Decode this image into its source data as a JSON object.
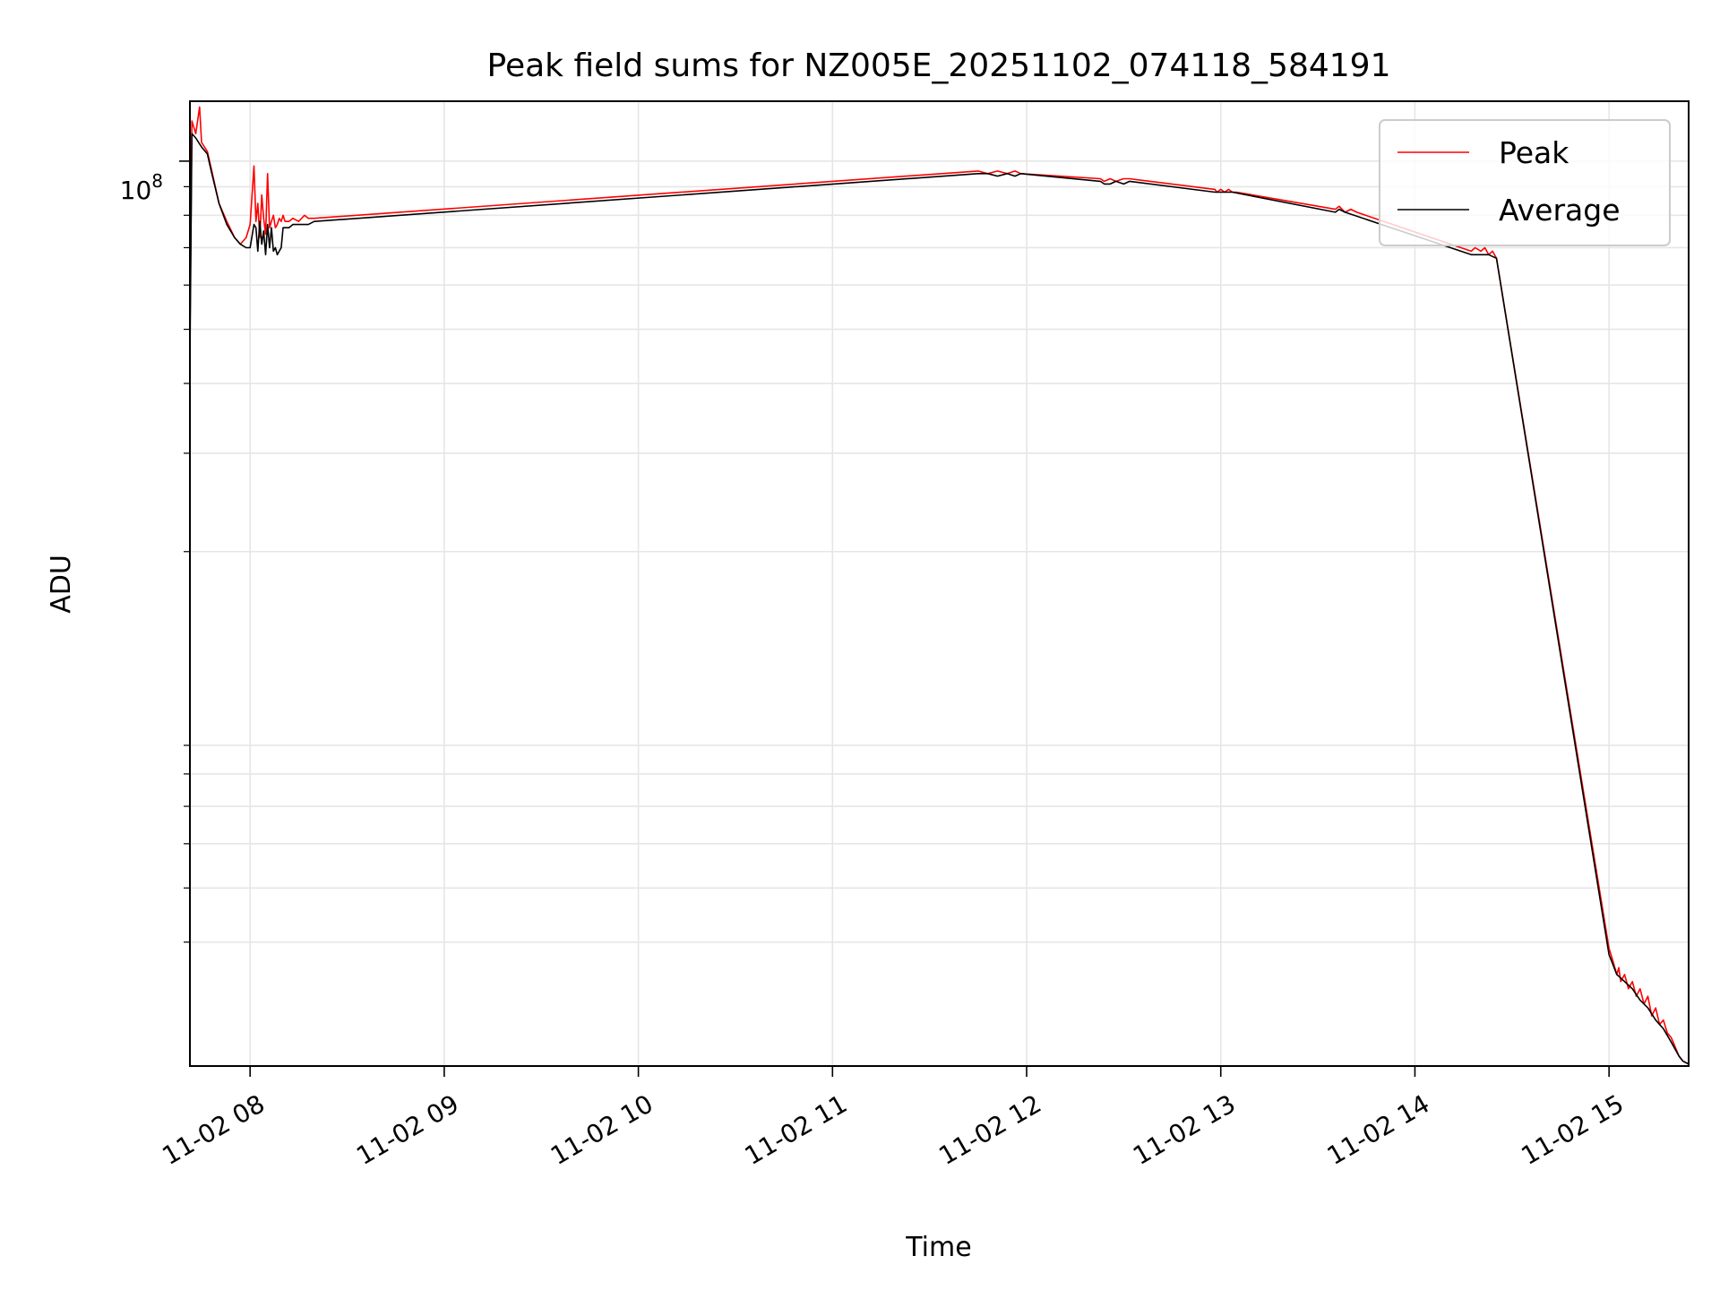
{
  "chart_data": {
    "type": "line",
    "title": "Peak field sums for NZ005E_20251102_074118_584191",
    "xlabel": "Time",
    "ylabel": "ADU",
    "yscale": "log",
    "grid": true,
    "legend_position": "top-right",
    "x_unit": "hours since 11-02 00:00",
    "xlim": [
      7.69,
      15.41
    ],
    "ylim": [
      2400000,
      128000000
    ],
    "x_ticks": [
      8,
      9,
      10,
      11,
      12,
      13,
      14,
      15
    ],
    "x_tick_labels": [
      "11-02 08",
      "11-02 09",
      "11-02 10",
      "11-02 11",
      "11-02 12",
      "11-02 13",
      "11-02 14",
      "11-02 15"
    ],
    "y_tick_label": {
      "base": "10",
      "exponent": "8",
      "value": 100000000
    },
    "y_minor_ticks": [
      4000000,
      5000000,
      6000000,
      7000000,
      8000000,
      9000000,
      20000000,
      30000000,
      40000000,
      50000000,
      60000000,
      70000000,
      80000000,
      90000000
    ],
    "series": [
      {
        "name": "Peak",
        "color": "#ff0000",
        "x": [
          7.69,
          7.7,
          7.72,
          7.74,
          7.75,
          7.78,
          7.8,
          7.84,
          7.88,
          7.92,
          7.95,
          7.98,
          8.0,
          8.02,
          8.03,
          8.04,
          8.05,
          8.06,
          8.07,
          8.08,
          8.09,
          8.1,
          8.11,
          8.12,
          8.13,
          8.14,
          8.15,
          8.16,
          8.17,
          8.18,
          8.2,
          8.22,
          8.25,
          8.28,
          8.3,
          8.33,
          11.75,
          11.8,
          11.85,
          11.9,
          11.94,
          11.97,
          12.38,
          12.4,
          12.43,
          12.46,
          12.5,
          12.53,
          12.97,
          12.98,
          13.0,
          13.02,
          13.04,
          13.06,
          13.08,
          13.59,
          13.61,
          13.64,
          13.67,
          13.7,
          14.29,
          14.31,
          14.34,
          14.36,
          14.38,
          14.4,
          14.42,
          15.0,
          15.02,
          15.04,
          15.05,
          15.06,
          15.08,
          15.1,
          15.12,
          15.14,
          15.16,
          15.18,
          15.2,
          15.22,
          15.24,
          15.26,
          15.28,
          15.3,
          15.32,
          15.34,
          15.36,
          15.38,
          15.41
        ],
        "y": [
          48000000,
          118000000,
          112000000,
          125000000,
          108000000,
          104000000,
          97000000,
          84000000,
          78000000,
          73000000,
          71000000,
          73000000,
          77000000,
          98000000,
          78000000,
          84000000,
          73000000,
          87000000,
          79000000,
          74000000,
          95000000,
          76000000,
          78000000,
          80000000,
          76000000,
          77000000,
          79000000,
          78000000,
          80000000,
          78000000,
          78000000,
          79000000,
          78000000,
          80000000,
          79000000,
          79000000,
          96000000,
          95000000,
          96000000,
          95000000,
          96000000,
          95000000,
          93000000,
          92000000,
          93000000,
          92000000,
          93000000,
          93000000,
          89000000,
          88000000,
          89000000,
          88000000,
          89000000,
          88000000,
          88000000,
          82000000,
          83000000,
          81000000,
          82000000,
          81000000,
          69000000,
          70000000,
          69000000,
          70000000,
          68000000,
          69000000,
          67000000,
          3900000,
          3700000,
          3500000,
          3600000,
          3400000,
          3500000,
          3300000,
          3400000,
          3200000,
          3300000,
          3100000,
          3200000,
          2950000,
          3050000,
          2850000,
          2900000,
          2750000,
          2700000,
          2600000,
          2500000,
          2450000,
          2420000
        ]
      },
      {
        "name": "Average",
        "color": "#000000",
        "x": [
          7.69,
          7.7,
          7.72,
          7.75,
          7.78,
          7.8,
          7.84,
          7.88,
          7.92,
          7.95,
          7.98,
          8.0,
          8.02,
          8.03,
          8.04,
          8.05,
          8.06,
          8.07,
          8.08,
          8.09,
          8.1,
          8.11,
          8.12,
          8.13,
          8.14,
          8.15,
          8.16,
          8.17,
          8.18,
          8.2,
          8.22,
          8.25,
          8.28,
          8.3,
          8.33,
          11.75,
          11.8,
          11.85,
          11.9,
          11.94,
          11.97,
          12.38,
          12.4,
          12.43,
          12.46,
          12.5,
          12.53,
          12.97,
          13.06,
          13.59,
          13.61,
          13.64,
          14.29,
          14.34,
          14.38,
          14.42,
          15.0,
          15.04,
          15.08,
          15.12,
          15.16,
          15.2,
          15.24,
          15.28,
          15.32,
          15.36,
          15.38,
          15.41
        ],
        "y": [
          44000000,
          112000000,
          110000000,
          106000000,
          103000000,
          96000000,
          84000000,
          77000000,
          73000000,
          71000000,
          70000000,
          70000000,
          77000000,
          76000000,
          69000000,
          78000000,
          71000000,
          75000000,
          68000000,
          77000000,
          70000000,
          76000000,
          69000000,
          70000000,
          68000000,
          69000000,
          70000000,
          76000000,
          76000000,
          76000000,
          77000000,
          77000000,
          77000000,
          77000000,
          78000000,
          95000000,
          95000000,
          94000000,
          95000000,
          94000000,
          95000000,
          92000000,
          91000000,
          91000000,
          92000000,
          91000000,
          92000000,
          88000000,
          88000000,
          81000000,
          82000000,
          81000000,
          68000000,
          68000000,
          68000000,
          67000000,
          3800000,
          3500000,
          3400000,
          3300000,
          3150000,
          3050000,
          2900000,
          2800000,
          2650000,
          2500000,
          2450000,
          2420000
        ]
      }
    ]
  }
}
